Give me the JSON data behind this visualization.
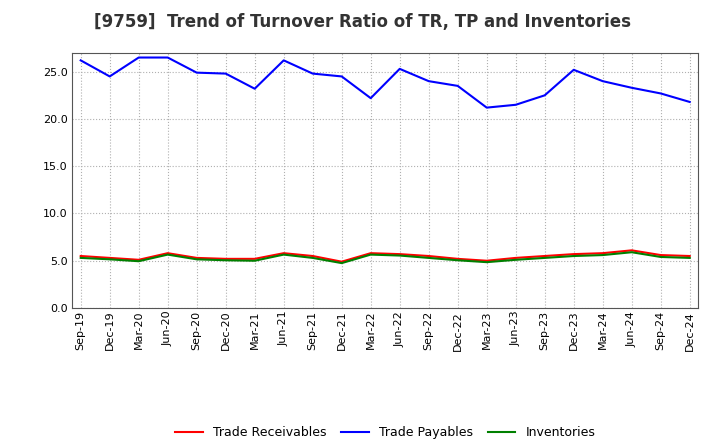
{
  "title": "[9759]  Trend of Turnover Ratio of TR, TP and Inventories",
  "labels": [
    "Sep-19",
    "Dec-19",
    "Mar-20",
    "Jun-20",
    "Sep-20",
    "Dec-20",
    "Mar-21",
    "Jun-21",
    "Sep-21",
    "Dec-21",
    "Mar-22",
    "Jun-22",
    "Sep-22",
    "Dec-22",
    "Mar-23",
    "Jun-23",
    "Sep-23",
    "Dec-23",
    "Mar-24",
    "Jun-24",
    "Sep-24",
    "Dec-24"
  ],
  "trade_receivables": [
    5.5,
    5.3,
    5.1,
    5.8,
    5.3,
    5.2,
    5.2,
    5.8,
    5.5,
    4.9,
    5.8,
    5.7,
    5.5,
    5.2,
    5.0,
    5.3,
    5.5,
    5.7,
    5.8,
    6.1,
    5.6,
    5.5
  ],
  "trade_payables": [
    26.2,
    24.5,
    26.5,
    26.5,
    24.9,
    24.8,
    23.2,
    26.2,
    24.8,
    24.5,
    22.2,
    25.3,
    24.0,
    23.5,
    21.2,
    21.5,
    22.5,
    25.2,
    24.0,
    23.3,
    22.7,
    21.8
  ],
  "inventories": [
    5.3,
    5.15,
    4.95,
    5.65,
    5.15,
    5.05,
    5.0,
    5.65,
    5.3,
    4.75,
    5.65,
    5.55,
    5.3,
    5.05,
    4.85,
    5.1,
    5.3,
    5.5,
    5.6,
    5.9,
    5.4,
    5.3
  ],
  "tr_color": "#ff0000",
  "tp_color": "#0000ff",
  "inv_color": "#008000",
  "ylim": [
    0,
    27
  ],
  "yticks": [
    0.0,
    5.0,
    10.0,
    15.0,
    20.0,
    25.0
  ],
  "background_color": "#ffffff",
  "grid_color": "#b0b0b0",
  "title_fontsize": 12,
  "tick_fontsize": 8,
  "legend_labels": [
    "Trade Receivables",
    "Trade Payables",
    "Inventories"
  ]
}
